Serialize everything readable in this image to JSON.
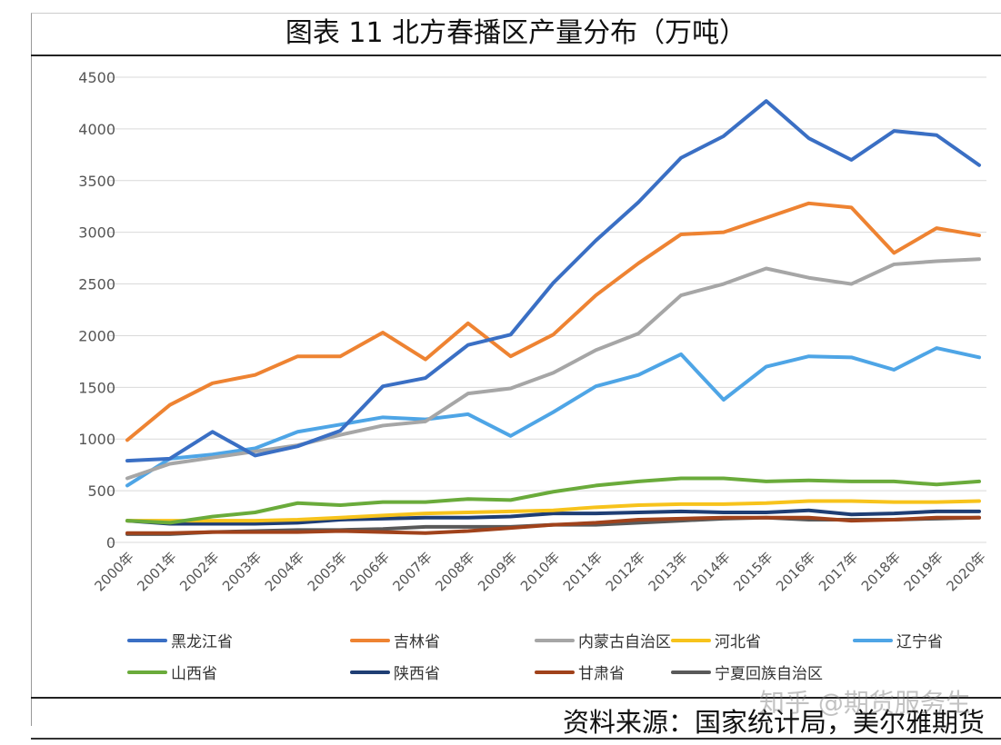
{
  "chart_data": {
    "type": "line",
    "title": "图表 11 北方春播区产量分布（万吨）",
    "xlabel": "",
    "ylabel": "",
    "ylim": [
      0,
      4500
    ],
    "yticks": [
      "0",
      "500",
      "1000",
      "1500",
      "2000",
      "2500",
      "3000",
      "3500",
      "4000",
      "4500"
    ],
    "grid": true,
    "legend_position": "bottom",
    "categories": [
      "2000年",
      "2001年",
      "2002年",
      "2003年",
      "2004年",
      "2005年",
      "2006年",
      "2007年",
      "2008年",
      "2009年",
      "2010年",
      "2011年",
      "2012年",
      "2013年",
      "2014年",
      "2015年",
      "2016年",
      "2017年",
      "2018年",
      "2019年",
      "2020年"
    ],
    "series": [
      {
        "name": "黑龙江省",
        "color": "#3a6fc4",
        "values": [
          790,
          810,
          1070,
          840,
          930,
          1080,
          1510,
          1590,
          1910,
          2010,
          2510,
          2920,
          3290,
          3720,
          3930,
          4270,
          3910,
          3700,
          3980,
          3940,
          3650
        ]
      },
      {
        "name": "吉林省",
        "color": "#ee8332",
        "values": [
          990,
          1330,
          1540,
          1620,
          1800,
          1800,
          2030,
          1770,
          2120,
          1800,
          2010,
          2390,
          2700,
          2980,
          3000,
          3140,
          3280,
          3240,
          2800,
          3040,
          2970
        ]
      },
      {
        "name": "内蒙古自治区",
        "color": "#a6a6a6",
        "values": [
          620,
          760,
          820,
          880,
          940,
          1040,
          1130,
          1170,
          1440,
          1490,
          1640,
          1860,
          2020,
          2390,
          2500,
          2650,
          2560,
          2500,
          2690,
          2720,
          2740
        ]
      },
      {
        "name": "河北省",
        "color": "#f7c31c",
        "values": [
          210,
          210,
          210,
          210,
          220,
          240,
          260,
          280,
          290,
          300,
          310,
          340,
          360,
          370,
          370,
          380,
          400,
          400,
          390,
          390,
          400
        ]
      },
      {
        "name": "辽宁省",
        "color": "#4ea5e6",
        "values": [
          550,
          810,
          850,
          910,
          1070,
          1140,
          1210,
          1190,
          1240,
          1030,
          1260,
          1510,
          1620,
          1820,
          1380,
          1700,
          1800,
          1790,
          1670,
          1880,
          1790
        ]
      },
      {
        "name": "山西省",
        "color": "#6aab3b",
        "values": [
          210,
          190,
          250,
          290,
          380,
          360,
          390,
          390,
          420,
          410,
          490,
          550,
          590,
          620,
          620,
          590,
          600,
          590,
          590,
          560,
          590
        ]
      },
      {
        "name": "陕西省",
        "color": "#1f3e74",
        "values": [
          210,
          180,
          180,
          180,
          190,
          220,
          230,
          240,
          240,
          250,
          280,
          280,
          290,
          300,
          290,
          290,
          310,
          270,
          280,
          300,
          300
        ]
      },
      {
        "name": "甘肃省",
        "color": "#a0421b",
        "values": [
          90,
          90,
          100,
          100,
          100,
          110,
          100,
          90,
          110,
          140,
          170,
          190,
          220,
          230,
          240,
          240,
          240,
          210,
          220,
          240,
          240
        ]
      },
      {
        "name": "宁夏回族自治区",
        "color": "#595959",
        "values": [
          80,
          80,
          100,
          110,
          120,
          120,
          130,
          150,
          150,
          150,
          170,
          170,
          190,
          210,
          230,
          240,
          220,
          220,
          220,
          230,
          240
        ]
      }
    ]
  },
  "source": "资料来源：国家统计局，美尔雅期货",
  "watermark": "知乎 @期货服务生"
}
